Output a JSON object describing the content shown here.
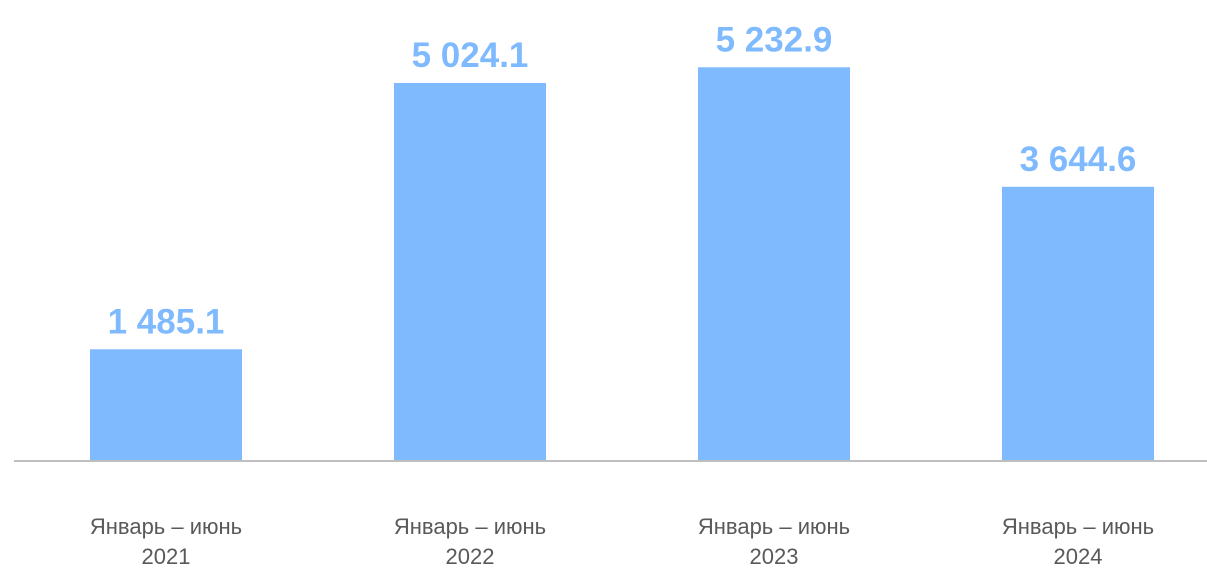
{
  "chart_data": {
    "type": "bar",
    "title": "",
    "xlabel": "",
    "ylabel": "",
    "categories": [
      [
        "Январь – июнь",
        "2021"
      ],
      [
        "Январь – июнь",
        "2022"
      ],
      [
        "Январь – июнь",
        "2023"
      ],
      [
        "Январь – июнь",
        "2024"
      ]
    ],
    "values": [
      1485.1,
      5024.1,
      5232.9,
      3644.6
    ],
    "value_labels": [
      "1 485.1",
      "5 024.1",
      "5 232.9",
      "3 644.6"
    ],
    "ylim": [
      0,
      5500
    ],
    "grid": false,
    "legend": "none",
    "colors": {
      "bar": "#7fbaff",
      "value_label": "#7fbaff",
      "axis_line": "#bfbfbf",
      "tick_label": "#595959"
    }
  }
}
